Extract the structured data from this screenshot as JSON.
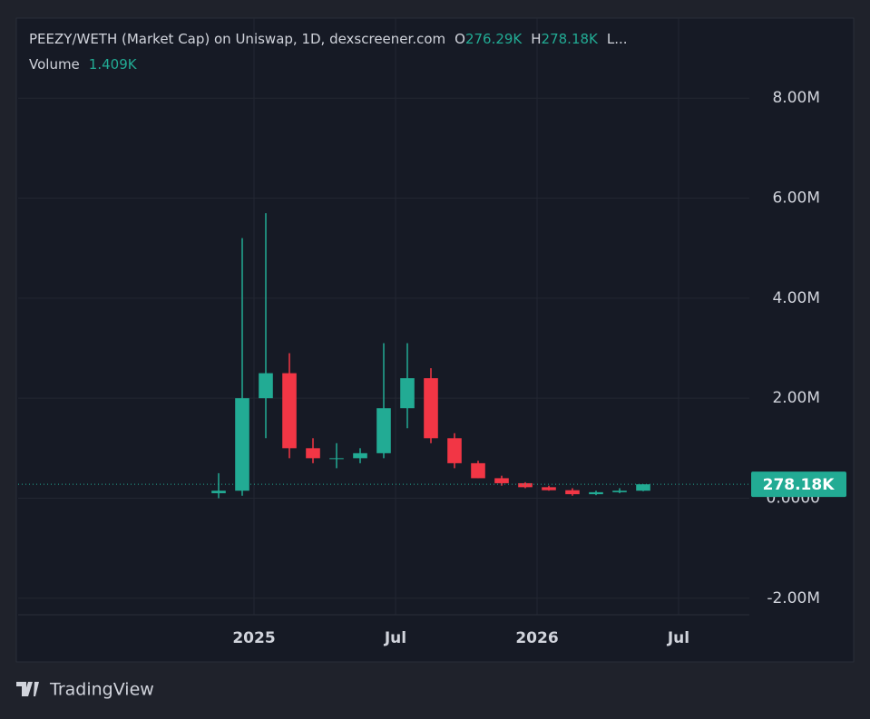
{
  "chart_data": {
    "type": "candlestick",
    "title": "PEEZY/WETH (Market Cap) on Uniswap, 1D, dexscreener.com",
    "legend_items": [
      "O",
      "276.29K",
      "H",
      "278.18K",
      "L..."
    ],
    "volume_label": "Volume",
    "volume_value": "1.409K",
    "x": [
      "2024-11",
      "2024-12",
      "2025-01",
      "2025-02",
      "2025-03",
      "2025-04",
      "2025-05",
      "2025-06",
      "2025-07",
      "2025-08",
      "2025-09",
      "2025-10",
      "2025-11",
      "2025-12",
      "2026-01",
      "2026-02",
      "2026-03",
      "2026-04",
      "2026-05"
    ],
    "open": [
      0.1,
      0.15,
      2.0,
      2.5,
      1.0,
      0.8,
      0.8,
      0.9,
      1.8,
      2.4,
      1.2,
      0.7,
      0.4,
      0.3,
      0.22,
      0.16,
      0.08,
      0.12,
      0.15
    ],
    "high": [
      0.5,
      5.2,
      5.7,
      2.9,
      1.2,
      1.1,
      1.0,
      3.1,
      3.1,
      2.6,
      1.3,
      0.75,
      0.45,
      0.32,
      0.25,
      0.2,
      0.15,
      0.2,
      0.28
    ],
    "low": [
      0.0,
      0.05,
      1.2,
      0.8,
      0.7,
      0.6,
      0.7,
      0.8,
      1.4,
      1.1,
      0.6,
      0.4,
      0.25,
      0.2,
      0.15,
      0.05,
      0.06,
      0.1,
      0.14
    ],
    "close": [
      0.15,
      2.0,
      2.5,
      1.0,
      0.8,
      0.8,
      0.9,
      1.8,
      2.4,
      1.2,
      0.7,
      0.4,
      0.3,
      0.22,
      0.16,
      0.08,
      0.12,
      0.15,
      0.278
    ],
    "up_color": "#22ab94",
    "down_color": "#f23645",
    "last_value": {
      "value": 0.27818,
      "label": "278.18K"
    },
    "xlim": [
      "2024-03",
      "2026-10"
    ],
    "xticks": [
      {
        "value": "2025-01",
        "label": "2025"
      },
      {
        "value": "2025-07",
        "label": "Jul"
      },
      {
        "value": "2026-01",
        "label": "2026"
      },
      {
        "value": "2026-07",
        "label": "Jul"
      }
    ],
    "ylim": [
      -2.33,
      9.6
    ],
    "yticks": [
      {
        "value": -2,
        "label": "-2.00M"
      },
      {
        "value": 0,
        "label": "0.0000"
      },
      {
        "value": 2,
        "label": "2.00M"
      },
      {
        "value": 4,
        "label": "4.00M"
      },
      {
        "value": 6,
        "label": "6.00M"
      },
      {
        "value": 8,
        "label": "8.00M"
      }
    ],
    "grid": true
  },
  "branding": "TradingView"
}
